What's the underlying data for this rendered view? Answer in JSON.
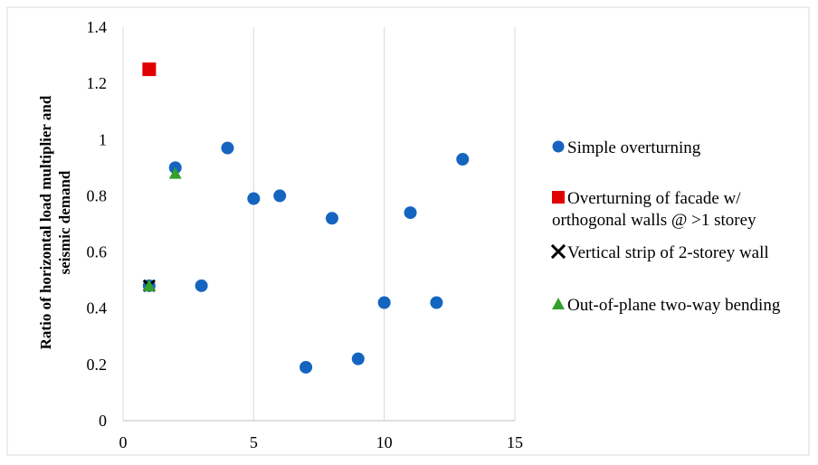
{
  "chart_data": {
    "type": "scatter",
    "title": "",
    "xlabel": "",
    "ylabel_lines": [
      "Ratio of horizontal load multiplier and",
      "seismic demand"
    ],
    "xlim": [
      0,
      15
    ],
    "ylim": [
      0,
      1.4
    ],
    "x_ticks": [
      "0",
      "5",
      "10",
      "15"
    ],
    "y_ticks": [
      "0",
      "0.2",
      "0.4",
      "0.6",
      "0.8",
      "1",
      "1.2",
      "1.4"
    ],
    "grid": "vertical",
    "legend_position": "right",
    "series": [
      {
        "name": "Simple overturning",
        "marker": "circle",
        "color": "#1565C0",
        "x": [
          1,
          2,
          3,
          4,
          5,
          6,
          7,
          8,
          9,
          10,
          11,
          12,
          13
        ],
        "y": [
          0.48,
          0.9,
          0.48,
          0.97,
          0.79,
          0.8,
          0.19,
          0.72,
          0.22,
          0.42,
          0.74,
          0.42,
          0.93
        ]
      },
      {
        "name_lines": [
          "Overturning of facade w/",
          "orthogonal walls @ >1 storey"
        ],
        "marker": "square",
        "color": "#E00000",
        "x": [
          1
        ],
        "y": [
          1.25
        ]
      },
      {
        "name": "Vertical strip of 2-storey wall",
        "marker": "x",
        "color": "#000000",
        "x": [
          1
        ],
        "y": [
          0.48
        ]
      },
      {
        "name": "Out-of-plane two-way bending",
        "marker": "triangle",
        "color": "#33A02C",
        "x": [
          1,
          2
        ],
        "y": [
          0.48,
          0.88
        ]
      }
    ]
  }
}
